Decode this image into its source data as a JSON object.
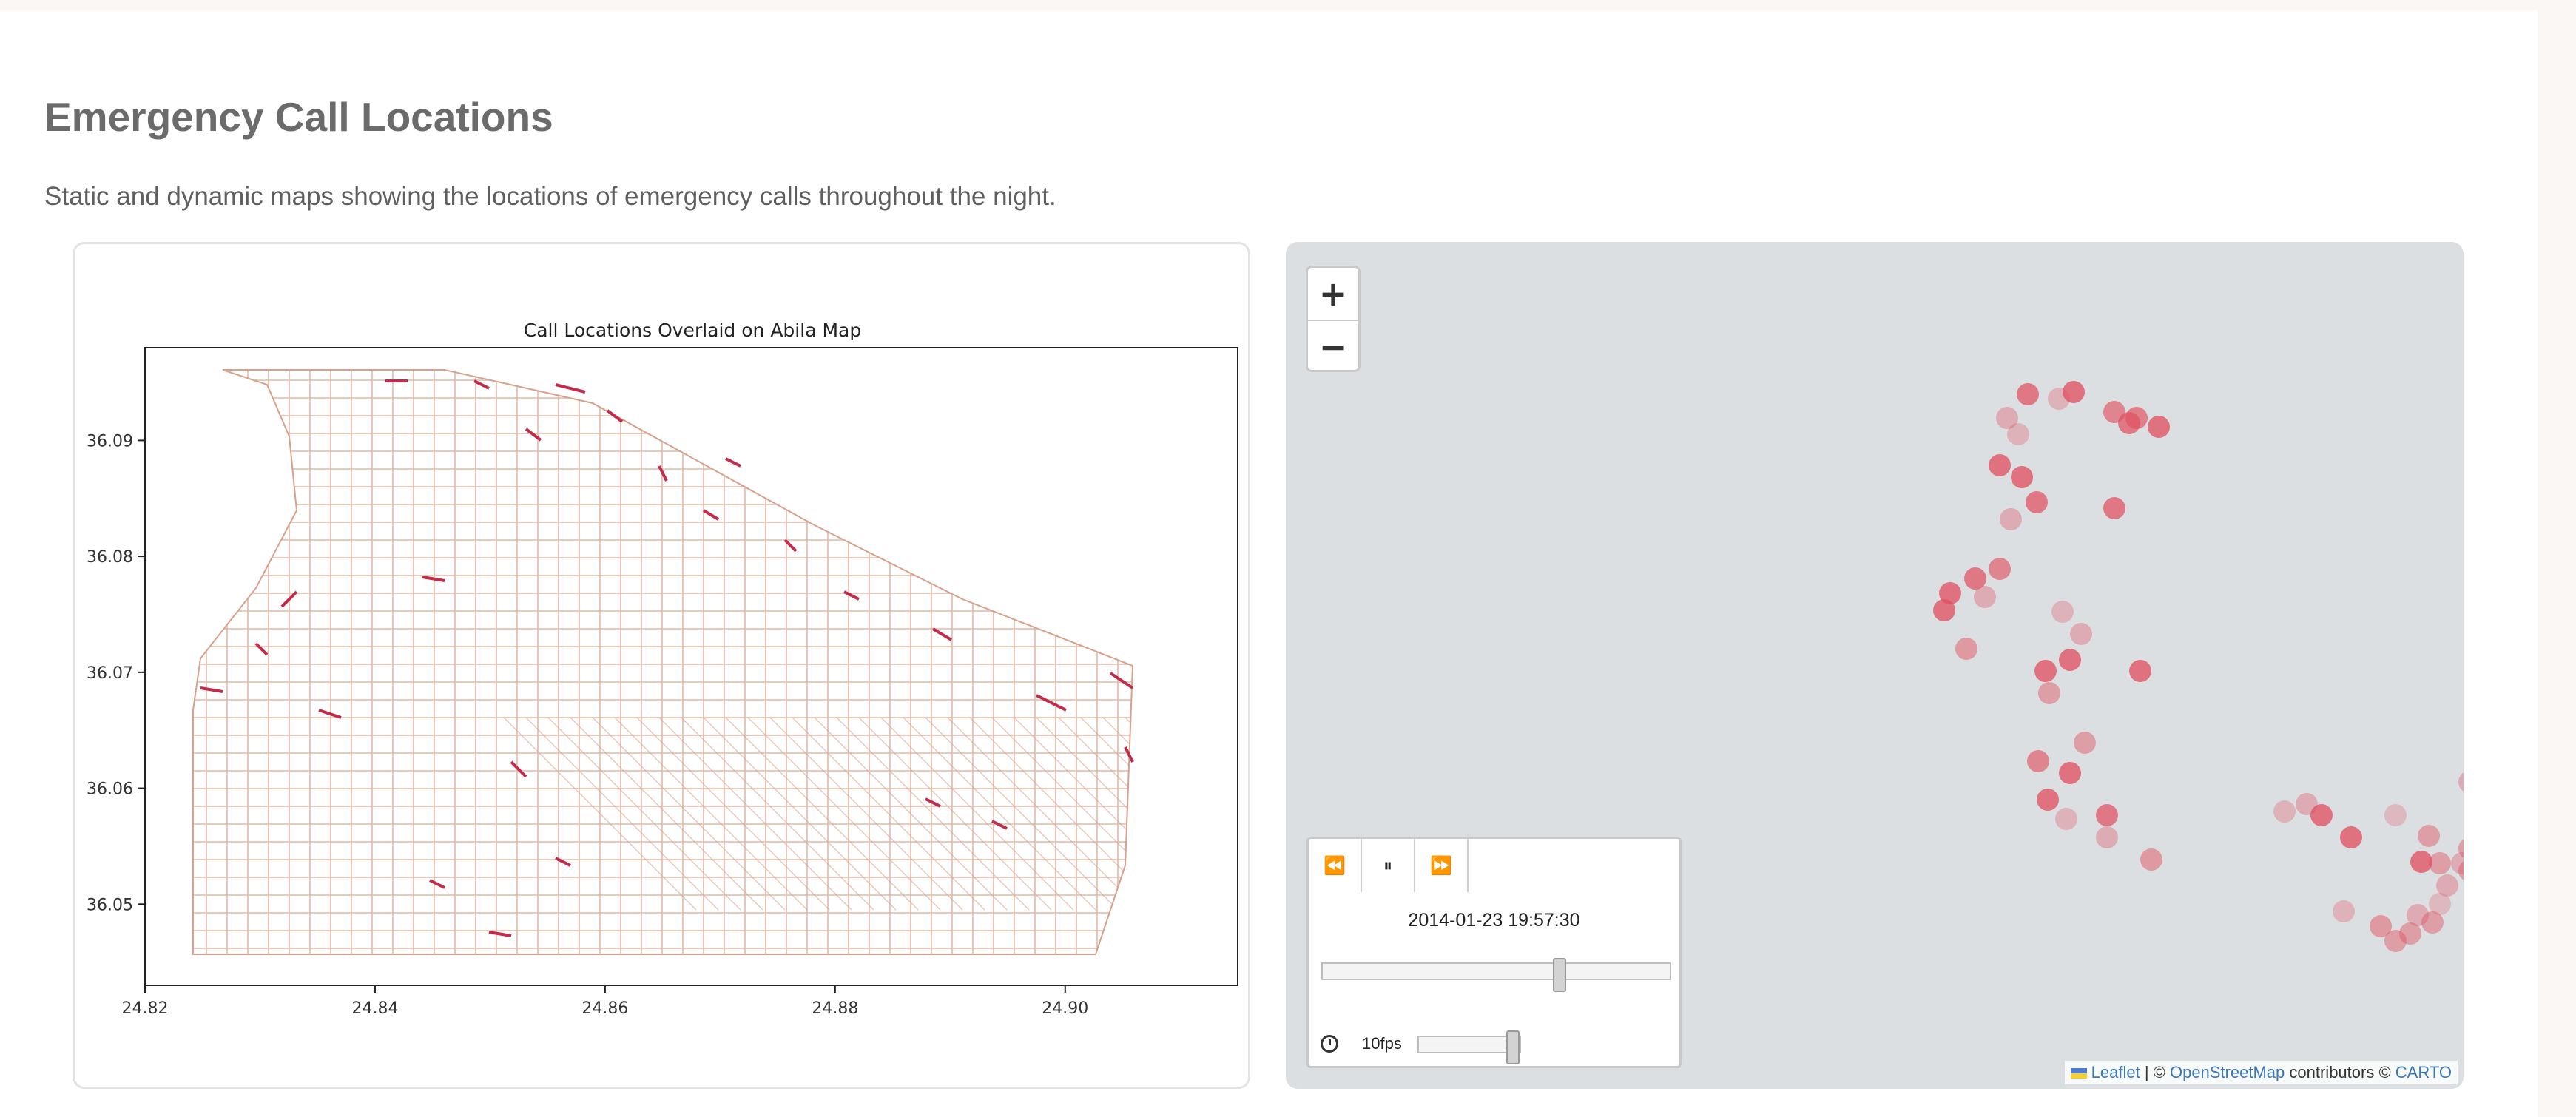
{
  "page": {
    "title": "Emergency Call Locations",
    "description": "Static and dynamic maps showing the locations of emergency calls throughout the night."
  },
  "static_map": {
    "title": "Call Locations Overlaid on Abila Map",
    "x_ticks": [
      "24.82",
      "24.84",
      "24.86",
      "24.88",
      "24.90"
    ],
    "y_ticks": [
      "36.09",
      "36.08",
      "36.07",
      "36.06",
      "36.05"
    ],
    "chart_data": {
      "type": "scatter",
      "title": "Call Locations Overlaid on Abila Map",
      "xlabel": "",
      "ylabel": "",
      "xlim": [
        24.82,
        24.915
      ],
      "ylim": [
        36.043,
        36.098
      ],
      "x_ticks": [
        24.82,
        24.84,
        24.86,
        24.88,
        24.9
      ],
      "y_ticks": [
        36.09,
        36.08,
        36.07,
        36.06,
        36.05
      ],
      "street_color": "#d9a08a",
      "call_color": "#c42a4a"
    }
  },
  "map": {
    "zoom_in": "+",
    "zoom_out": "−",
    "marker_color": "#e05060",
    "player": {
      "rewind_icon": "⏪",
      "pause_icon": "⏸",
      "forward_icon": "⏩",
      "time": "2014-01-23 19:57:30",
      "progress": 0.69,
      "fps_label": "10fps",
      "fps_level": 1.0
    },
    "attribution": {
      "leaflet": "Leaflet",
      "sep": " | © ",
      "osm": "OpenStreetMap",
      "contrib": " contributors © ",
      "carto": "CARTO"
    }
  }
}
